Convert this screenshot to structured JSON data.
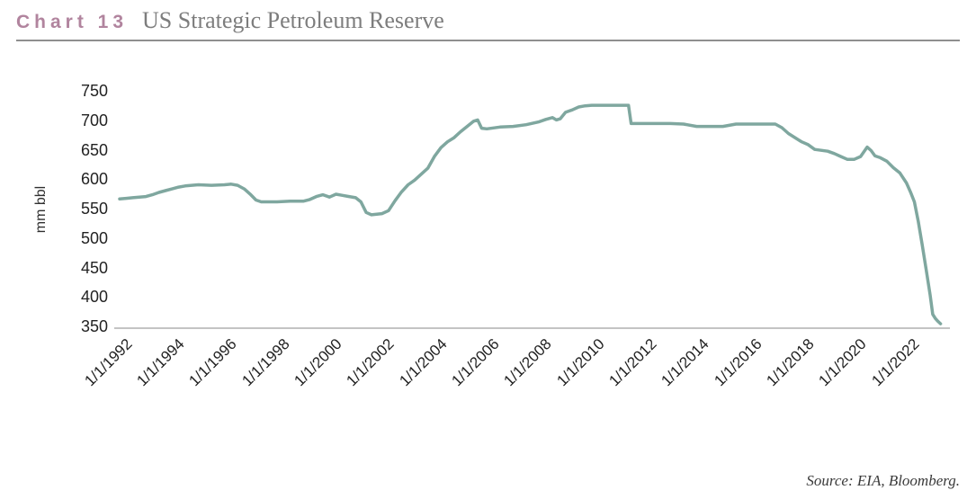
{
  "header": {
    "chart_label": "Chart 13",
    "title": "US Strategic Petroleum Reserve"
  },
  "source": "Source: EIA, Bloomberg.",
  "colors": {
    "chart_label": "#b1849e",
    "title_text": "#7d7d7d",
    "line": "#7fa79f",
    "axis_line": "#c4c4c4",
    "tick_text": "#222222"
  },
  "chart_data": {
    "type": "line",
    "title": "US Strategic Petroleum Reserve",
    "xlabel": "",
    "ylabel": "mm bbl",
    "ylim": [
      350,
      750
    ],
    "xlim": [
      1992,
      2023.45
    ],
    "grid": false,
    "legend": "none",
    "y_ticks": [
      750,
      700,
      650,
      600,
      550,
      500,
      450,
      400,
      350
    ],
    "x_ticks": [
      "1/1/1992",
      "1/1/1994",
      "1/1/1996",
      "1/1/1998",
      "1/1/2000",
      "1/1/2002",
      "1/1/2004",
      "1/1/2006",
      "1/1/2008",
      "1/1/2010",
      "1/1/2012",
      "1/1/2014",
      "1/1/2016",
      "1/1/2018",
      "1/1/2020",
      "1/1/2022"
    ],
    "x_tick_years": [
      1992,
      1994,
      1996,
      1998,
      2000,
      2002,
      2004,
      2006,
      2008,
      2010,
      2012,
      2014,
      2016,
      2018,
      2020,
      2022
    ],
    "series": [
      {
        "name": "US Strategic Petroleum Reserve (mm bbl)",
        "x": [
          1992.0,
          1992.25,
          1992.5,
          1992.75,
          1993.0,
          1993.25,
          1993.5,
          1993.75,
          1994.0,
          1994.25,
          1994.5,
          1994.75,
          1995.0,
          1995.5,
          1996.0,
          1996.25,
          1996.5,
          1996.75,
          1997.0,
          1997.2,
          1997.4,
          1998.0,
          1998.5,
          1999.0,
          1999.25,
          1999.5,
          1999.75,
          2000.0,
          2000.25,
          2000.5,
          2000.75,
          2001.0,
          2001.2,
          2001.4,
          2001.6,
          2002.0,
          2002.25,
          2002.5,
          2002.75,
          2003.0,
          2003.25,
          2003.5,
          2003.75,
          2004.0,
          2004.25,
          2004.5,
          2004.75,
          2005.0,
          2005.25,
          2005.5,
          2005.65,
          2005.8,
          2006.0,
          2006.5,
          2007.0,
          2007.5,
          2008.0,
          2008.25,
          2008.5,
          2008.65,
          2008.8,
          2009.0,
          2009.25,
          2009.5,
          2009.75,
          2010.0,
          2010.5,
          2011.0,
          2011.4,
          2011.5,
          2012.0,
          2012.5,
          2013.0,
          2013.5,
          2014.0,
          2014.5,
          2015.0,
          2015.5,
          2016.0,
          2016.5,
          2017.0,
          2017.25,
          2017.5,
          2017.75,
          2018.0,
          2018.25,
          2018.5,
          2019.0,
          2019.25,
          2019.5,
          2019.75,
          2020.0,
          2020.25,
          2020.5,
          2020.65,
          2020.8,
          2021.0,
          2021.25,
          2021.5,
          2021.75,
          2022.0,
          2022.15,
          2022.3,
          2022.45,
          2022.6,
          2022.75,
          2022.9,
          2023.0,
          2023.1,
          2023.2,
          2023.3
        ],
        "values": [
          568,
          569,
          570,
          571,
          572,
          575,
          579,
          582,
          585,
          588,
          590,
          591,
          592,
          591,
          592,
          593,
          591,
          585,
          575,
          566,
          563,
          563,
          564,
          564,
          567,
          572,
          575,
          571,
          576,
          574,
          572,
          570,
          563,
          545,
          541,
          543,
          548,
          565,
          580,
          592,
          600,
          610,
          620,
          640,
          655,
          665,
          672,
          682,
          691,
          700,
          702,
          688,
          687,
          690,
          691,
          694,
          699,
          703,
          706,
          702,
          704,
          715,
          719,
          724,
          726,
          727,
          727,
          727,
          727,
          696,
          696,
          696,
          696,
          695,
          691,
          691,
          691,
          695,
          695,
          695,
          695,
          689,
          679,
          672,
          665,
          660,
          652,
          649,
          645,
          640,
          635,
          635,
          640,
          656,
          650,
          641,
          638,
          632,
          621,
          612,
          595,
          580,
          563,
          530,
          490,
          448,
          405,
          372,
          365,
          360,
          356
        ]
      }
    ]
  }
}
